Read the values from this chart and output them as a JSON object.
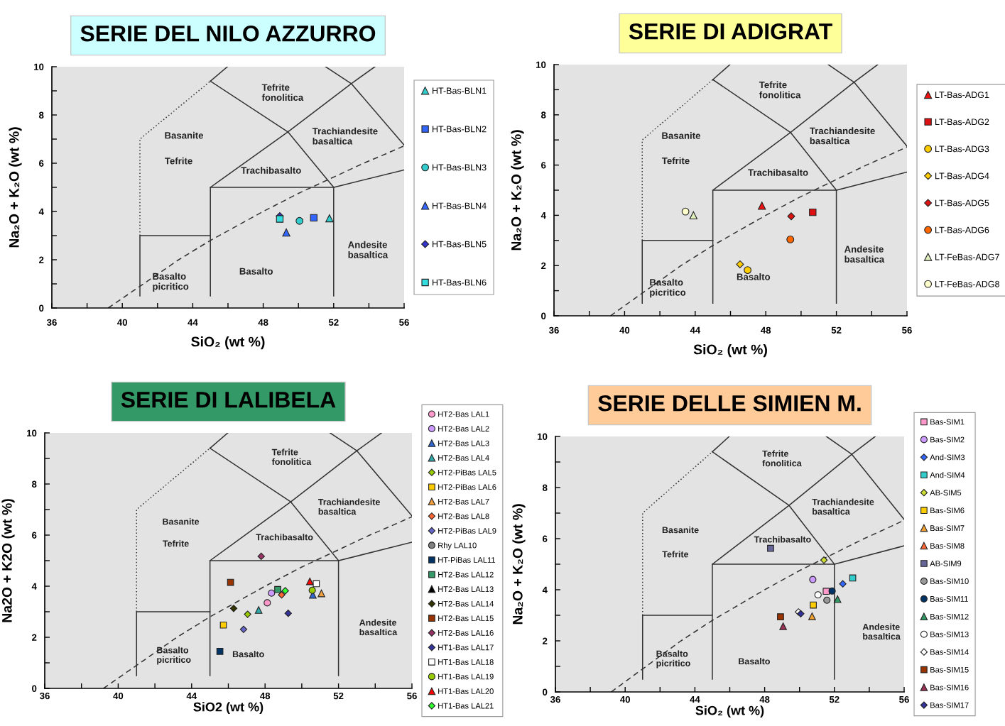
{
  "chart_data": [
    {
      "type": "scatter",
      "title": "SERIE DEL NILO AZZURRO",
      "xlabel": "SiO₂ (wt %)",
      "ylabel": "Na₂O + K₂O (wt %)",
      "xlim": [
        36,
        56
      ],
      "ylim": [
        0,
        10
      ],
      "xticks": [
        36,
        {
          "value": 38,
          "label": null
        },
        40,
        {
          "value": 42,
          "label": null
        },
        44,
        {
          "value": 46,
          "label": null
        },
        48,
        {
          "value": 50,
          "label": null
        },
        52,
        {
          "value": 54,
          "label": null
        },
        56
      ],
      "yticks": [
        0,
        {
          "value": 1,
          "label": null
        },
        2,
        {
          "value": 3,
          "label": null
        },
        4,
        {
          "value": 5,
          "label": null
        },
        6,
        {
          "value": 7,
          "label": null
        },
        8,
        {
          "value": 9,
          "label": null
        },
        10
      ],
      "legend": "right",
      "annotations": [
        "Tefrite\nfonolitica",
        "Basanite",
        "Tefrite",
        "Trachiandesite\nbasaltica",
        "Trachibasalto",
        "Andesite\nbasaltica",
        "Basalto",
        "Basalto\npicritico"
      ],
      "series": [
        {
          "type": "line",
          "line_style": "solid",
          "color": "#333333",
          "x": [
            41,
            41,
            45
          ],
          "values": [
            0.5,
            3,
            3
          ]
        },
        {
          "type": "line",
          "line_style": "dotted",
          "color": "#333333",
          "x": [
            41,
            41,
            45
          ],
          "values": [
            3,
            7,
            9.4
          ]
        },
        {
          "type": "line",
          "line_style": "solid",
          "color": "#333333",
          "x": [
            45,
            45,
            52,
            52
          ],
          "values": [
            0.5,
            5,
            5,
            0.5
          ]
        },
        {
          "type": "line",
          "line_style": "solid",
          "color": "#333333",
          "x": [
            45,
            49.4,
            53,
            54.34
          ],
          "values": [
            5,
            7.3,
            9.3,
            10
          ]
        },
        {
          "type": "line",
          "line_style": "solid",
          "color": "#333333",
          "x": [
            45,
            49.4,
            52
          ],
          "values": [
            9.4,
            7.3,
            5
          ]
        },
        {
          "type": "line",
          "line_style": "solid",
          "color": "#333333",
          "x": [
            45,
            45.97
          ],
          "values": [
            9.4,
            10
          ]
        },
        {
          "type": "line",
          "line_style": "solid",
          "color": "#333333",
          "x": [
            51.54,
            53,
            56
          ],
          "values": [
            10,
            9.3,
            6.75
          ]
        },
        {
          "type": "line",
          "line_style": "solid",
          "color": "#333333",
          "x": [
            52,
            56
          ],
          "values": [
            5,
            5.72
          ]
        },
        {
          "type": "line",
          "line_style": "dashed",
          "color": "#333333",
          "x": [
            39.2,
            40,
            43.2,
            45,
            48,
            50,
            53.7,
            55,
            56
          ],
          "values": [
            0,
            0.4,
            2,
            2.8,
            4,
            4.75,
            6,
            6.4,
            6.72
          ]
        },
        {
          "name": "HT-Bas-BLN1",
          "type": "scatter",
          "marker": "triangle",
          "color": "#33cccc",
          "x": [
            51.76
          ],
          "values": [
            3.72
          ]
        },
        {
          "name": "HT-Bas-BLN2",
          "type": "scatter",
          "marker": "square",
          "color": "#3366ff",
          "x": [
            50.87
          ],
          "values": [
            3.74
          ]
        },
        {
          "name": "HT-Bas-BLN3",
          "type": "scatter",
          "marker": "circle",
          "color": "#33cccc",
          "x": [
            50.06
          ],
          "values": [
            3.61
          ]
        },
        {
          "name": "HT-Bas-BLN4",
          "type": "scatter",
          "marker": "triangle",
          "color": "#3366ff",
          "x": [
            49.31
          ],
          "values": [
            3.13
          ]
        },
        {
          "name": "HT-Bas-BLN5",
          "type": "scatter",
          "marker": "diamond",
          "color": "#3333cc",
          "x": [
            48.94
          ],
          "values": [
            3.81
          ]
        },
        {
          "name": "HT-Bas-BLN6",
          "type": "scatter",
          "marker": "square",
          "color": "#33dddd",
          "x": [
            48.94
          ],
          "values": [
            3.69
          ]
        }
      ]
    },
    {
      "type": "scatter",
      "title": "SERIE DI ADIGRAT",
      "xlabel": "SiO₂ (wt %)",
      "ylabel": "Na₂O + K₂O (wt %)",
      "xlim": [
        36,
        56
      ],
      "ylim": [
        0,
        10
      ],
      "xticks": [
        36,
        {
          "value": 38,
          "label": null
        },
        40,
        {
          "value": 42,
          "label": null
        },
        44,
        {
          "value": 46,
          "label": null
        },
        48,
        {
          "value": 50,
          "label": null
        },
        52,
        {
          "value": 54,
          "label": null
        },
        56
      ],
      "yticks": [
        0,
        {
          "value": 1,
          "label": null
        },
        2,
        {
          "value": 3,
          "label": null
        },
        4,
        {
          "value": 5,
          "label": null
        },
        6,
        {
          "value": 7,
          "label": null
        },
        8,
        {
          "value": 9,
          "label": null
        },
        10
      ],
      "legend": "right",
      "annotations": [
        "Tefrite\nfonolitica",
        "Basanite",
        "Tefrite",
        "Trachiandesite\nbasaltica",
        "Trachibasalto",
        "Andesite\nbasaltica",
        "Basalto",
        "Basalto\npicritico"
      ],
      "series": [
        {
          "type": "line",
          "line_style": "solid",
          "color": "#333333",
          "x": [
            41,
            41,
            45
          ],
          "values": [
            0.5,
            3,
            3
          ]
        },
        {
          "type": "line",
          "line_style": "dotted",
          "color": "#333333",
          "x": [
            41,
            41,
            45
          ],
          "values": [
            3,
            7,
            9.4
          ]
        },
        {
          "type": "line",
          "line_style": "solid",
          "color": "#333333",
          "x": [
            45,
            45,
            52,
            52
          ],
          "values": [
            0.5,
            5,
            5,
            0.5
          ]
        },
        {
          "type": "line",
          "line_style": "solid",
          "color": "#333333",
          "x": [
            45,
            49.4,
            53,
            54.34
          ],
          "values": [
            5,
            7.3,
            9.3,
            10
          ]
        },
        {
          "type": "line",
          "line_style": "solid",
          "color": "#333333",
          "x": [
            45,
            49.4,
            52
          ],
          "values": [
            9.4,
            7.3,
            5
          ]
        },
        {
          "type": "line",
          "line_style": "solid",
          "color": "#333333",
          "x": [
            45,
            45.97
          ],
          "values": [
            9.4,
            10
          ]
        },
        {
          "type": "line",
          "line_style": "solid",
          "color": "#333333",
          "x": [
            51.54,
            53,
            56
          ],
          "values": [
            10,
            9.3,
            6.75
          ]
        },
        {
          "type": "line",
          "line_style": "solid",
          "color": "#333333",
          "x": [
            52,
            56
          ],
          "values": [
            5,
            5.72
          ]
        },
        {
          "type": "line",
          "line_style": "dashed",
          "color": "#333333",
          "x": [
            39.2,
            40,
            43.2,
            45,
            48,
            50,
            53.7,
            55,
            56
          ],
          "values": [
            0,
            0.4,
            2,
            2.8,
            4,
            4.75,
            6,
            6.4,
            6.72
          ]
        },
        {
          "name": "LT-Bas-ADG1",
          "type": "scatter",
          "marker": "triangle",
          "color": "#ee1111",
          "x": [
            47.78
          ],
          "values": [
            4.38
          ]
        },
        {
          "name": "LT-Bas-ADG2",
          "type": "scatter",
          "marker": "square",
          "color": "#dd1111",
          "x": [
            50.66
          ],
          "values": [
            4.12
          ]
        },
        {
          "name": "LT-Bas-ADG3",
          "type": "scatter",
          "marker": "circle",
          "color": "#ffcc00",
          "x": [
            46.97
          ],
          "values": [
            1.82
          ]
        },
        {
          "name": "LT-Bas-ADG4",
          "type": "scatter",
          "marker": "diamond",
          "color": "#ffcc00",
          "x": [
            46.54
          ],
          "values": [
            2.05
          ]
        },
        {
          "name": "LT-Bas-ADG5",
          "type": "scatter",
          "marker": "diamond",
          "color": "#dd1111",
          "x": [
            49.44
          ],
          "values": [
            3.96
          ]
        },
        {
          "name": "LT-Bas-ADG6",
          "type": "scatter",
          "marker": "circle",
          "color": "#ff6600",
          "x": [
            49.39
          ],
          "values": [
            3.04
          ]
        },
        {
          "name": "LT-FeBas-ADG7",
          "type": "scatter",
          "marker": "triangle",
          "color": "#e2f0c0",
          "x": [
            43.9
          ],
          "values": [
            4.0
          ]
        },
        {
          "name": "LT-FeBas-ADG8",
          "type": "scatter",
          "marker": "circle",
          "color": "#ffffcc",
          "x": [
            43.45
          ],
          "values": [
            4.15
          ]
        }
      ]
    },
    {
      "type": "scatter",
      "title": "SERIE DI LALIBELA",
      "xlabel": "SiO2 (wt %)",
      "ylabel": "Na2O + K2O (wt %)",
      "xlim": [
        36,
        56
      ],
      "ylim": [
        0,
        10
      ],
      "xticks": [
        36,
        {
          "value": 38,
          "label": null
        },
        40,
        {
          "value": 42,
          "label": null
        },
        44,
        {
          "value": 46,
          "label": null
        },
        48,
        {
          "value": 50,
          "label": null
        },
        52,
        {
          "value": 54,
          "label": null
        },
        56
      ],
      "yticks": [
        0,
        {
          "value": 1,
          "label": null
        },
        2,
        {
          "value": 3,
          "label": null
        },
        4,
        {
          "value": 5,
          "label": null
        },
        6,
        {
          "value": 7,
          "label": null
        },
        8,
        {
          "value": 9,
          "label": null
        },
        10
      ],
      "legend": "right",
      "annotations": [
        "Tefrite\nfonolitica",
        "Basanite",
        "Tefrite",
        "Trachiandesite\nbasaltica",
        "Trachibasalto",
        "Andesite\nbasaltica",
        "Basalto",
        "Basalto\npicritico"
      ],
      "series": [
        {
          "type": "line",
          "line_style": "solid",
          "color": "#333333",
          "x": [
            41,
            41,
            45
          ],
          "values": [
            0.5,
            3,
            3
          ]
        },
        {
          "type": "line",
          "line_style": "dotted",
          "color": "#333333",
          "x": [
            41,
            41,
            45
          ],
          "values": [
            3,
            7,
            9.4
          ]
        },
        {
          "type": "line",
          "line_style": "solid",
          "color": "#333333",
          "x": [
            45,
            45,
            52,
            52
          ],
          "values": [
            0.5,
            5,
            5,
            0.5
          ]
        },
        {
          "type": "line",
          "line_style": "solid",
          "color": "#333333",
          "x": [
            45,
            49.4,
            53,
            54.34
          ],
          "values": [
            5,
            7.3,
            9.3,
            10
          ]
        },
        {
          "type": "line",
          "line_style": "solid",
          "color": "#333333",
          "x": [
            45,
            49.4,
            52
          ],
          "values": [
            9.4,
            7.3,
            5
          ]
        },
        {
          "type": "line",
          "line_style": "solid",
          "color": "#333333",
          "x": [
            45,
            45.97
          ],
          "values": [
            9.4,
            10
          ]
        },
        {
          "type": "line",
          "line_style": "solid",
          "color": "#333333",
          "x": [
            51.54,
            53,
            56
          ],
          "values": [
            10,
            9.3,
            6.75
          ]
        },
        {
          "type": "line",
          "line_style": "solid",
          "color": "#333333",
          "x": [
            52,
            56
          ],
          "values": [
            5,
            5.72
          ]
        },
        {
          "type": "line",
          "line_style": "dashed",
          "color": "#333333",
          "x": [
            39.2,
            40,
            43.2,
            45,
            48,
            50,
            53.7,
            55,
            56
          ],
          "values": [
            0,
            0.4,
            2,
            2.8,
            4,
            4.75,
            6,
            6.4,
            6.72
          ]
        },
        {
          "name": "HT2-Bas LAL1",
          "type": "scatter",
          "marker": "circle",
          "color": "#ff99cc",
          "x": [
            48.12
          ],
          "values": [
            3.35
          ]
        },
        {
          "name": "HT2-Bas LAL2",
          "type": "scatter",
          "marker": "circle",
          "color": "#cc99ff",
          "x": [
            48.35
          ],
          "values": [
            3.73
          ]
        },
        {
          "name": "HT2-Bas LAL3",
          "type": "scatter",
          "marker": "triangle",
          "color": "#3366cc",
          "x": [
            50.6
          ],
          "values": [
            3.66
          ]
        },
        {
          "name": "HT2-Bas LAL4",
          "type": "scatter",
          "marker": "triangle",
          "color": "#33aaaa",
          "x": [
            47.65
          ],
          "values": [
            3.07
          ]
        },
        {
          "name": "HT2-PiBas LAL5",
          "type": "scatter",
          "marker": "diamond",
          "color": "#99cc00",
          "x": [
            47.05
          ],
          "values": [
            2.9
          ]
        },
        {
          "name": "HT2-PiBas LAL6",
          "type": "scatter",
          "marker": "square",
          "color": "#ffcc00",
          "x": [
            45.73
          ],
          "values": [
            2.48
          ]
        },
        {
          "name": "HT2-Bas LAL7",
          "type": "scatter",
          "marker": "triangle",
          "color": "#f0a040",
          "x": [
            51.07
          ],
          "values": [
            3.72
          ]
        },
        {
          "name": "HT2-Bas LAL8",
          "type": "scatter",
          "marker": "diamond",
          "color": "#ff6633",
          "x": [
            48.9
          ],
          "values": [
            3.66
          ]
        },
        {
          "name": "HT2-PiBas LAL9",
          "type": "scatter",
          "marker": "diamond",
          "color": "#6666cc",
          "x": [
            46.83
          ],
          "values": [
            2.31
          ]
        },
        {
          "name": "Rhy LAL10",
          "type": "scatter",
          "marker": "circle",
          "color": "#808080",
          "x": [
            null
          ],
          "values": [
            null
          ]
        },
        {
          "name": "HT-PiBas LAL11",
          "type": "scatter",
          "marker": "square",
          "color": "#003366",
          "x": [
            45.54
          ],
          "values": [
            1.45
          ]
        },
        {
          "name": "HT2-Bas LAL12",
          "type": "scatter",
          "marker": "square",
          "color": "#339966",
          "x": [
            48.69
          ],
          "values": [
            3.87
          ]
        },
        {
          "name": "HT2-Bas LAL13",
          "type": "scatter",
          "marker": "triangle",
          "color": "#000000",
          "x": [
            null
          ],
          "values": [
            null
          ]
        },
        {
          "name": "HT2-Bas LAL14",
          "type": "scatter",
          "marker": "diamond",
          "color": "#333300",
          "x": [
            46.29
          ],
          "values": [
            3.13
          ]
        },
        {
          "name": "HT2-Bas LAL15",
          "type": "scatter",
          "marker": "square",
          "color": "#993300",
          "x": [
            46.12
          ],
          "values": [
            4.15
          ]
        },
        {
          "name": "HT2-Bas LAL16",
          "type": "scatter",
          "marker": "diamond",
          "color": "#993366",
          "x": [
            47.79
          ],
          "values": [
            5.17
          ]
        },
        {
          "name": "HT1-Bas LAL17",
          "type": "scatter",
          "marker": "diamond",
          "color": "#333399",
          "x": [
            49.26
          ],
          "values": [
            2.94
          ]
        },
        {
          "name": "HT1-Bas LAL18",
          "type": "scatter",
          "marker": "square",
          "color": "#ffffff",
          "x": [
            50.79
          ],
          "values": [
            4.1
          ]
        },
        {
          "name": "HT1-Bas LAL19",
          "type": "scatter",
          "marker": "circle",
          "color": "#99cc00",
          "x": [
            50.57
          ],
          "values": [
            3.84
          ]
        },
        {
          "name": "HT1-Bas LAL20",
          "type": "scatter",
          "marker": "triangle",
          "color": "#ff0000",
          "x": [
            50.44
          ],
          "values": [
            4.19
          ]
        },
        {
          "name": "HT1-Bas LAL21",
          "type": "scatter",
          "marker": "diamond",
          "color": "#33ff33",
          "x": [
            49.1
          ],
          "values": [
            3.82
          ]
        }
      ]
    },
    {
      "type": "scatter",
      "title": "SERIE DELLE SIMIEN M.",
      "xlabel": "SiO₂ (wt %)",
      "ylabel": "Na₂O + K₂O (wt %)",
      "xlim": [
        36,
        56
      ],
      "ylim": [
        0,
        10
      ],
      "xticks": [
        36,
        {
          "value": 38,
          "label": null
        },
        40,
        {
          "value": 42,
          "label": null
        },
        44,
        {
          "value": 46,
          "label": null
        },
        48,
        {
          "value": 50,
          "label": null
        },
        52,
        {
          "value": 54,
          "label": null
        },
        56
      ],
      "yticks": [
        0,
        {
          "value": 1,
          "label": null
        },
        2,
        {
          "value": 3,
          "label": null
        },
        4,
        {
          "value": 5,
          "label": null
        },
        6,
        {
          "value": 7,
          "label": null
        },
        8,
        {
          "value": 9,
          "label": null
        },
        10
      ],
      "legend": "right",
      "annotations": [
        "Tefrite\nfonolitica",
        "Basanite",
        "Tefrite",
        "Trachiandesite\nbasaltica",
        "Trachibasalto",
        "Andesite\nbasaltica",
        "Basalto",
        "Basalto\npicritico"
      ],
      "series": [
        {
          "type": "line",
          "line_style": "solid",
          "color": "#333333",
          "x": [
            41,
            41,
            45
          ],
          "values": [
            0.5,
            3,
            3
          ]
        },
        {
          "type": "line",
          "line_style": "dotted",
          "color": "#333333",
          "x": [
            41,
            41,
            45
          ],
          "values": [
            3,
            7,
            9.4
          ]
        },
        {
          "type": "line",
          "line_style": "solid",
          "color": "#333333",
          "x": [
            45,
            45,
            52,
            52
          ],
          "values": [
            0.5,
            5,
            5,
            0.5
          ]
        },
        {
          "type": "line",
          "line_style": "solid",
          "color": "#333333",
          "x": [
            45,
            49.4,
            53,
            54.34
          ],
          "values": [
            5,
            7.3,
            9.3,
            10
          ]
        },
        {
          "type": "line",
          "line_style": "solid",
          "color": "#333333",
          "x": [
            45,
            49.4,
            52
          ],
          "values": [
            9.4,
            7.3,
            5
          ]
        },
        {
          "type": "line",
          "line_style": "solid",
          "color": "#333333",
          "x": [
            45,
            45.97
          ],
          "values": [
            9.4,
            10
          ]
        },
        {
          "type": "line",
          "line_style": "solid",
          "color": "#333333",
          "x": [
            51.54,
            53,
            56
          ],
          "values": [
            10,
            9.3,
            6.75
          ]
        },
        {
          "type": "line",
          "line_style": "solid",
          "color": "#333333",
          "x": [
            52,
            56
          ],
          "values": [
            5,
            5.72
          ]
        },
        {
          "type": "line",
          "line_style": "dashed",
          "color": "#333333",
          "x": [
            39.2,
            40,
            43.2,
            45,
            48,
            50,
            53.7,
            55,
            56
          ],
          "values": [
            0,
            0.4,
            2,
            2.8,
            4,
            4.75,
            6,
            6.4,
            6.72
          ]
        },
        {
          "name": "Bas-SIM1",
          "type": "scatter",
          "marker": "square",
          "color": "#ff99cc",
          "x": [
            51.53
          ],
          "values": [
            3.94
          ]
        },
        {
          "name": "Bas-SIM2",
          "type": "scatter",
          "marker": "circle",
          "color": "#cc99ff",
          "x": [
            50.76
          ],
          "values": [
            4.4
          ]
        },
        {
          "name": "And-SIM3",
          "type": "scatter",
          "marker": "diamond",
          "color": "#3366ff",
          "x": [
            52.48
          ],
          "values": [
            4.23
          ]
        },
        {
          "name": "And-SIM4",
          "type": "scatter",
          "marker": "square",
          "color": "#33cccc",
          "x": [
            53.05
          ],
          "values": [
            4.46
          ]
        },
        {
          "name": "AB-SIM5",
          "type": "scatter",
          "marker": "diamond",
          "color": "#ccdd33",
          "x": [
            51.4
          ],
          "values": [
            5.16
          ]
        },
        {
          "name": "Bas-SIM6",
          "type": "scatter",
          "marker": "square",
          "color": "#ffcc00",
          "x": [
            50.79
          ],
          "values": [
            3.4
          ]
        },
        {
          "name": "Bas-SIM7",
          "type": "scatter",
          "marker": "triangle",
          "color": "#f0a030",
          "x": [
            50.72
          ],
          "values": [
            2.96
          ]
        },
        {
          "name": "Bas-SIM8",
          "type": "scatter",
          "marker": "triangle",
          "color": "#ff6633",
          "x": [
            null
          ],
          "values": [
            null
          ]
        },
        {
          "name": "AB-SIM9",
          "type": "scatter",
          "marker": "square",
          "color": "#666699",
          "x": [
            48.34
          ],
          "values": [
            5.62
          ]
        },
        {
          "name": "Bas-SIM10",
          "type": "scatter",
          "marker": "circle",
          "color": "#999999",
          "x": [
            51.57
          ],
          "values": [
            3.59
          ]
        },
        {
          "name": "Bas-SIM11",
          "type": "scatter",
          "marker": "circle",
          "color": "#003366",
          "x": [
            51.87
          ],
          "values": [
            3.95
          ]
        },
        {
          "name": "Bas-SIM12",
          "type": "scatter",
          "marker": "triangle",
          "color": "#339966",
          "x": [
            52.18
          ],
          "values": [
            3.63
          ]
        },
        {
          "name": "Bas-SIM13",
          "type": "scatter",
          "marker": "circle",
          "color": "#ffffff",
          "x": [
            51.06
          ],
          "values": [
            3.8
          ]
        },
        {
          "name": "Bas-SIM14",
          "type": "scatter",
          "marker": "diamond",
          "color": "#ffffff",
          "x": [
            49.94
          ],
          "values": [
            3.13
          ]
        },
        {
          "name": "Bas-SIM15",
          "type": "scatter",
          "marker": "square",
          "color": "#993300",
          "x": [
            48.91
          ],
          "values": [
            2.94
          ]
        },
        {
          "name": "Bas-SIM16",
          "type": "scatter",
          "marker": "triangle",
          "color": "#993355",
          "x": [
            49.06
          ],
          "values": [
            2.57
          ]
        },
        {
          "name": "Bas-SIM17",
          "type": "scatter",
          "marker": "diamond",
          "color": "#333399",
          "x": [
            50.07
          ],
          "values": [
            3.06
          ]
        }
      ]
    }
  ]
}
